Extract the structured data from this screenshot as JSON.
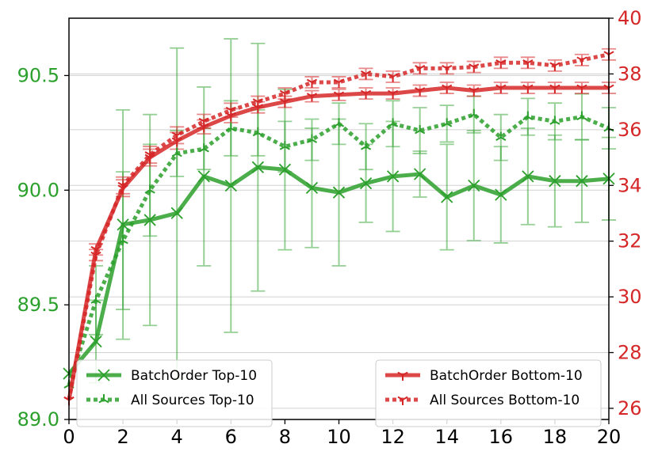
{
  "chart_data": {
    "type": "line",
    "x": [
      0,
      1,
      2,
      3,
      4,
      5,
      6,
      7,
      8,
      9,
      10,
      11,
      12,
      13,
      14,
      15,
      16,
      17,
      18,
      19,
      20
    ],
    "xlim": [
      0,
      20
    ],
    "x_ticks": [
      0,
      2,
      4,
      6,
      8,
      10,
      12,
      14,
      16,
      18,
      20
    ],
    "left_axis": {
      "ylim": [
        89.0,
        90.75
      ],
      "ticks": [
        89.0,
        89.5,
        90.0,
        90.5
      ],
      "tick_labels": [
        "89.0",
        "89.5",
        "90.0",
        "90.5"
      ],
      "color": "#2ca02c"
    },
    "right_axis": {
      "ylim": [
        25.6,
        40.0
      ],
      "ticks": [
        26,
        28,
        30,
        32,
        34,
        36,
        38,
        40
      ],
      "tick_labels": [
        "26",
        "28",
        "30",
        "32",
        "34",
        "36",
        "38",
        "40"
      ],
      "color": "#d62728"
    },
    "grid": true,
    "legend_left_placement": "lower-left",
    "legend_right_placement": "lower-right",
    "series": [
      {
        "name": "BatchOrder Top-10",
        "axis": "left",
        "color": "#2ca02c",
        "style": "solid",
        "marker": "x",
        "values": [
          89.2,
          89.34,
          89.85,
          89.87,
          89.9,
          90.06,
          90.02,
          90.1,
          90.09,
          90.01,
          89.99,
          90.03,
          90.06,
          90.07,
          89.97,
          90.02,
          89.98,
          90.06,
          90.04,
          90.04,
          90.05
        ],
        "err": [
          0.0,
          0.18,
          0.5,
          0.46,
          0.72,
          0.39,
          0.64,
          0.54,
          0.35,
          0.26,
          0.32,
          0.17,
          0.24,
          0.1,
          0.23,
          0.24,
          0.21,
          0.21,
          0.2,
          0.18,
          0.18
        ]
      },
      {
        "name": "All Sources Top-10",
        "axis": "left",
        "color": "#2ca02c",
        "style": "dotted",
        "marker": "tri_up",
        "values": [
          89.15,
          89.52,
          89.78,
          90.0,
          90.16,
          90.18,
          90.27,
          90.25,
          90.19,
          90.22,
          90.29,
          90.19,
          90.29,
          90.26,
          90.29,
          90.33,
          90.23,
          90.32,
          90.3,
          90.32,
          90.27
        ],
        "err": [
          0.0,
          0.15,
          0.3,
          0.2,
          0.1,
          0.09,
          0.12,
          0.1,
          0.11,
          0.09,
          0.09,
          0.1,
          0.1,
          0.1,
          0.08,
          0.08,
          0.1,
          0.08,
          0.08,
          0.1,
          0.09
        ]
      },
      {
        "name": "BatchOrder Bottom-10",
        "axis": "right",
        "color": "#d62728",
        "style": "solid",
        "marker": "tri_down",
        "values": [
          26.3,
          31.7,
          33.9,
          35.0,
          35.6,
          36.1,
          36.5,
          36.8,
          37.0,
          37.2,
          37.25,
          37.3,
          37.3,
          37.4,
          37.5,
          37.4,
          37.5,
          37.5,
          37.5,
          37.5,
          37.5
        ],
        "err": [
          0.0,
          0.2,
          0.3,
          0.3,
          0.3,
          0.25,
          0.25,
          0.2,
          0.2,
          0.2,
          0.2,
          0.2,
          0.2,
          0.2,
          0.2,
          0.2,
          0.2,
          0.2,
          0.2,
          0.2,
          0.2
        ]
      },
      {
        "name": "All Sources Bottom-10",
        "axis": "right",
        "color": "#d62728",
        "style": "dotted",
        "marker": "tri_down",
        "values": [
          26.3,
          31.5,
          34.0,
          35.1,
          35.8,
          36.3,
          36.7,
          37.0,
          37.3,
          37.7,
          37.7,
          38.0,
          37.9,
          38.2,
          38.2,
          38.25,
          38.4,
          38.4,
          38.3,
          38.5,
          38.7
        ],
        "err": [
          0.0,
          0.2,
          0.3,
          0.3,
          0.3,
          0.25,
          0.25,
          0.2,
          0.2,
          0.2,
          0.2,
          0.2,
          0.2,
          0.2,
          0.2,
          0.2,
          0.2,
          0.2,
          0.2,
          0.2,
          0.2
        ]
      }
    ]
  }
}
